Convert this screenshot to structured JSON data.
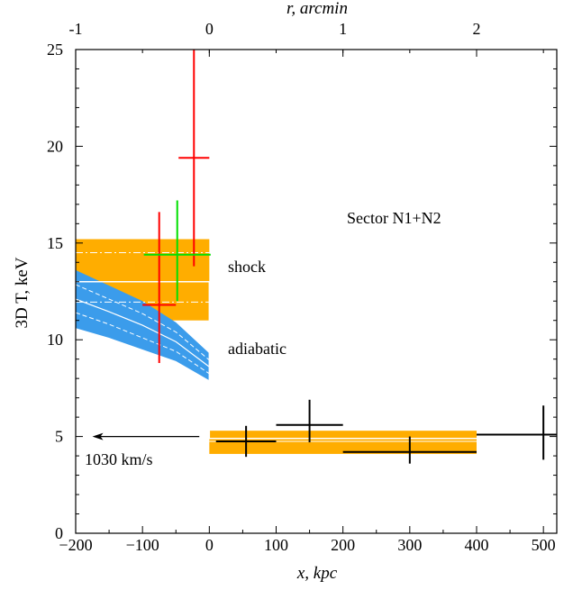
{
  "chart_data": {
    "type": "scatter",
    "title": "",
    "xlabel": "x, kpc",
    "ylabel": "3D T, keV",
    "top_xlabel": "r, arcmin",
    "xlim": [
      -200,
      520
    ],
    "ylim": [
      0,
      25
    ],
    "x_ticks": [
      -200,
      -100,
      0,
      100,
      200,
      300,
      400,
      500
    ],
    "x_tick_labels": [
      "−200",
      "−100",
      "0",
      "100",
      "200",
      "300",
      "400",
      "500"
    ],
    "y_ticks": [
      0,
      5,
      10,
      15,
      20,
      25
    ],
    "y_tick_labels": [
      "0",
      "5",
      "10",
      "15",
      "20",
      "25"
    ],
    "top_ticks": [
      -1,
      0,
      1,
      2
    ],
    "top_tick_labels": [
      "-1",
      "0",
      "1",
      "2"
    ],
    "top_tick_x_kpc": [
      -200,
      0,
      200,
      400
    ],
    "annotations": {
      "sector": "Sector N1+N2",
      "shock": "shock",
      "adiabatic": "adiabatic",
      "velocity": "1030 km/s"
    },
    "colors": {
      "orange": "#ffad00",
      "blue": "#3b9ceb",
      "red": "#ff0000",
      "green": "#00e000",
      "black": "#000000",
      "white": "#ffffff"
    },
    "shock_band": {
      "pre_x": [
        -200,
        0
      ],
      "pre_y": [
        11.0,
        15.2
      ],
      "pre_dashdot": [
        14.5,
        13.0,
        11.95
      ],
      "post_x": [
        0,
        400
      ],
      "post_y": [
        4.1,
        5.3
      ],
      "post_line": 4.75
    },
    "adiabatic_band": {
      "x": [
        -200,
        -150,
        -100,
        -50,
        0
      ],
      "upper": [
        13.6,
        12.8,
        12.0,
        10.9,
        9.3
      ],
      "lower": [
        10.6,
        10.1,
        9.5,
        8.9,
        7.9
      ],
      "center": [
        12.1,
        11.45,
        10.75,
        9.9,
        8.6
      ],
      "dash_hi": [
        12.85,
        12.1,
        11.35,
        10.4,
        8.95
      ],
      "dash_lo": [
        11.4,
        10.8,
        10.1,
        9.4,
        8.25
      ],
      "model_x": [
        -200,
        0,
        0,
        400
      ],
      "model_y": [
        13.0,
        13.0,
        4.9,
        4.9
      ]
    },
    "series": [
      {
        "color": "red",
        "points": [
          {
            "x": -75,
            "y": 11.8,
            "xerr": 25,
            "yerr_lo": 3.0,
            "yerr_hi": 4.8
          },
          {
            "x": -23,
            "y": 19.4,
            "xerr": 23,
            "yerr_lo": 5.6,
            "yerr_hi": 5.6
          }
        ]
      },
      {
        "color": "green",
        "points": [
          {
            "x": -48,
            "y": 14.4,
            "xerr": 50,
            "yerr_lo": 2.4,
            "yerr_hi": 2.8
          }
        ]
      },
      {
        "color": "black",
        "points": [
          {
            "x": 55,
            "y": 4.75,
            "xerr": 45,
            "yerr_lo": 0.8,
            "yerr_hi": 0.8
          },
          {
            "x": 150,
            "y": 5.6,
            "xerr": 50,
            "yerr_lo": 0.9,
            "yerr_hi": 1.3
          },
          {
            "x": 300,
            "y": 4.2,
            "xerr": 100,
            "yerr_lo": 0.6,
            "yerr_hi": 0.8
          },
          {
            "x": 500,
            "y": 5.1,
            "xerr": 100,
            "yerr_lo": 1.3,
            "yerr_hi": 1.5
          }
        ]
      }
    ],
    "velocity_arrow": {
      "from_x": -15,
      "to_x": -175,
      "y": 5.0
    }
  }
}
